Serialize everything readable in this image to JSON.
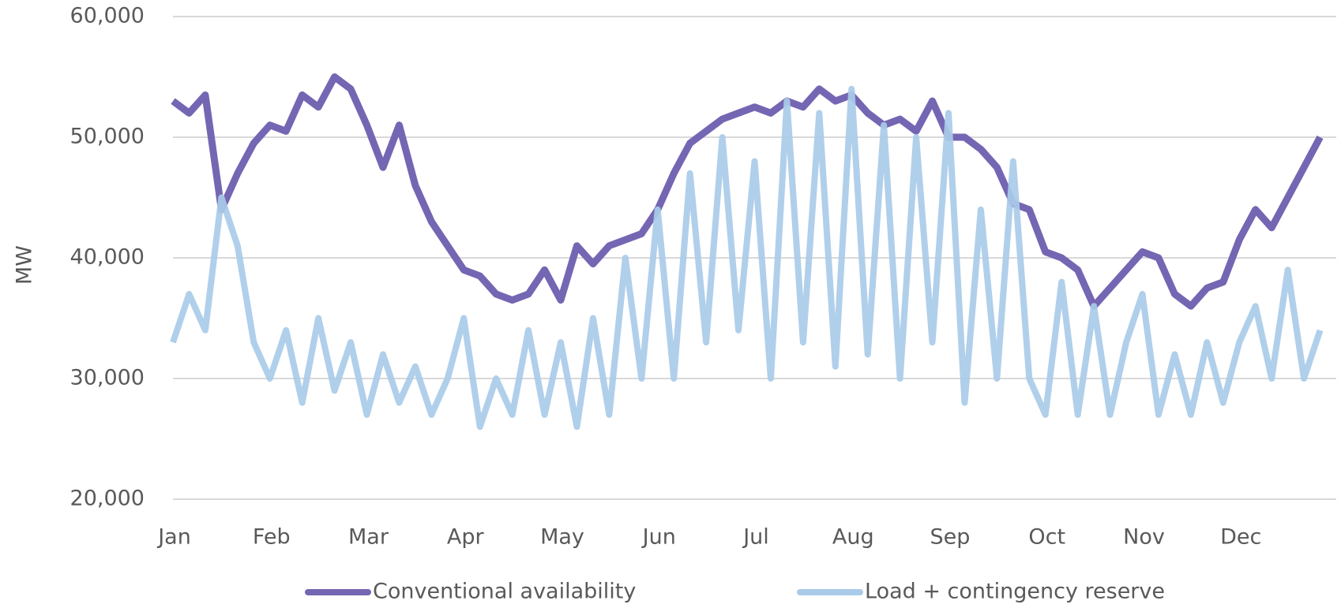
{
  "chart_data": {
    "type": "line",
    "ylabel": "MW",
    "categories": [
      "Jan",
      null,
      null,
      null,
      null,
      null,
      "Feb",
      null,
      null,
      null,
      null,
      null,
      "Mar",
      null,
      null,
      null,
      null,
      null,
      "Apr",
      null,
      null,
      null,
      null,
      null,
      "May",
      null,
      null,
      null,
      null,
      null,
      "Jun",
      null,
      null,
      null,
      null,
      null,
      "Jul",
      null,
      null,
      null,
      null,
      null,
      "Aug",
      null,
      null,
      null,
      null,
      null,
      "Sep",
      null,
      null,
      null,
      null,
      null,
      "Oct",
      null,
      null,
      null,
      null,
      null,
      "Nov",
      null,
      null,
      null,
      null,
      null,
      "Dec",
      null,
      null,
      null,
      null,
      null
    ],
    "series": [
      {
        "name": "Conventional availability",
        "color": "#7566b3",
        "values": [
          53000,
          52000,
          53500,
          44000,
          47000,
          49500,
          51000,
          50500,
          53500,
          52500,
          55000,
          54000,
          51000,
          47500,
          51000,
          46000,
          43000,
          41000,
          39000,
          38500,
          37000,
          36500,
          37000,
          39000,
          36500,
          41000,
          39500,
          41000,
          41500,
          42000,
          44000,
          47000,
          49500,
          50500,
          51500,
          52000,
          52500,
          52000,
          53000,
          52500,
          54000,
          53000,
          53500,
          52000,
          51000,
          51500,
          50500,
          53000,
          50000,
          50000,
          49000,
          47500,
          44500,
          44000,
          40500,
          40000,
          39000,
          36000,
          37500,
          39000,
          40500,
          40000,
          37000,
          36000,
          37500,
          38000,
          41500,
          44000,
          42500,
          45000,
          47500,
          50000
        ]
      },
      {
        "name": "Load + contingency reserve",
        "color": "#a9cbe8",
        "values": [
          33000,
          37000,
          34000,
          45000,
          41000,
          33000,
          30000,
          34000,
          28000,
          35000,
          29000,
          33000,
          27000,
          32000,
          28000,
          31000,
          27000,
          30000,
          35000,
          26000,
          30000,
          27000,
          34000,
          27000,
          33000,
          26000,
          35000,
          27000,
          40000,
          30000,
          44000,
          30000,
          47000,
          33000,
          50000,
          34000,
          48000,
          30000,
          53000,
          33000,
          52000,
          31000,
          54000,
          32000,
          51000,
          30000,
          50000,
          33000,
          52000,
          28000,
          44000,
          30000,
          48000,
          30000,
          27000,
          38000,
          27000,
          36000,
          27000,
          33000,
          37000,
          27000,
          32000,
          27000,
          33000,
          28000,
          33000,
          36000,
          30000,
          39000,
          30000,
          34000
        ]
      }
    ],
    "ylim": [
      20000,
      60000
    ],
    "yticks": [
      {
        "value": 20000,
        "label": "20,000"
      },
      {
        "value": 30000,
        "label": "30,000"
      },
      {
        "value": 40000,
        "label": "40,000"
      },
      {
        "value": 50000,
        "label": "50,000"
      },
      {
        "value": 60000,
        "label": "60,000"
      }
    ],
    "grid": true,
    "legend": "bottom"
  }
}
